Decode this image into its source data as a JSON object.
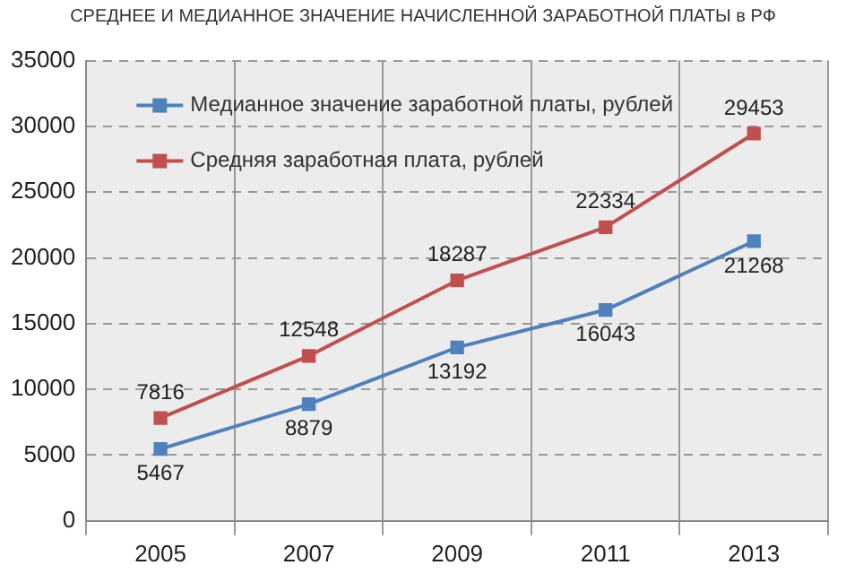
{
  "chart_data": {
    "type": "line",
    "title": "СРЕДНЕЕ И МЕДИАННОЕ ЗНАЧЕНИЕ НАЧИСЛЕННОЙ ЗАРАБОТНОЙ ПЛАТЫ в РФ",
    "categories": [
      "2005",
      "2007",
      "2009",
      "2011",
      "2013"
    ],
    "series": [
      {
        "name": "Медианное значение заработной платы, рублей",
        "color": "#4f81bd",
        "values": [
          5467,
          8879,
          13192,
          16043,
          21268
        ]
      },
      {
        "name": "Средняя заработная плата, рублей",
        "color": "#c0504d",
        "values": [
          7816,
          12548,
          18287,
          22334,
          29453
        ]
      }
    ],
    "ylim": [
      0,
      35000
    ],
    "yticks": [
      0,
      5000,
      10000,
      15000,
      20000,
      25000,
      30000,
      35000
    ],
    "grid": true,
    "legend": "top left",
    "marker": "square",
    "line_style": "solid",
    "data_labels": true
  }
}
